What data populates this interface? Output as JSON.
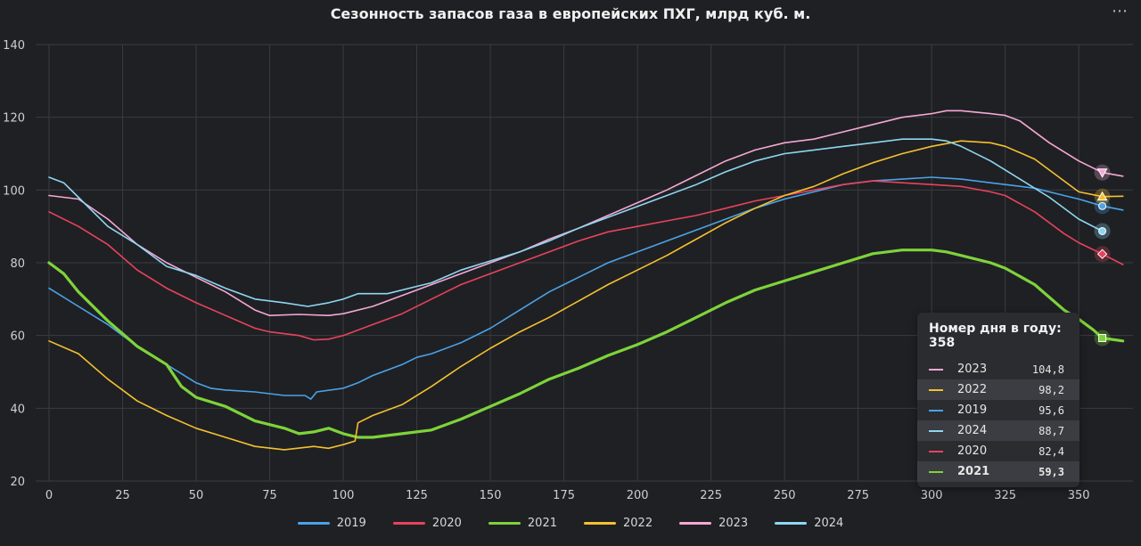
{
  "header": {
    "title": "Сезонность запасов газа в европейских ПХГ, млрд куб. м.",
    "menu_icon": "more-dots-icon"
  },
  "chart_data": {
    "type": "line",
    "title": "Сезонность запасов газа в европейских ПХГ, млрд куб. м.",
    "xlabel": "",
    "ylabel": "",
    "xlim": [
      0,
      366
    ],
    "ylim": [
      20,
      140
    ],
    "xticks": [
      0,
      25,
      50,
      75,
      100,
      125,
      150,
      175,
      200,
      225,
      250,
      275,
      300,
      325,
      350
    ],
    "yticks": [
      20,
      40,
      60,
      80,
      100,
      120,
      140
    ],
    "grid": true,
    "legend_position": "bottom",
    "series": [
      {
        "name": "2019",
        "color": "#4aa3e8",
        "width": 1.6,
        "marker": "circle",
        "points": [
          [
            0,
            73
          ],
          [
            10,
            68
          ],
          [
            20,
            63
          ],
          [
            30,
            57
          ],
          [
            40,
            52
          ],
          [
            50,
            47
          ],
          [
            55,
            45.5
          ],
          [
            60,
            45
          ],
          [
            70,
            44.5
          ],
          [
            80,
            43.5
          ],
          [
            87,
            43.5
          ],
          [
            89,
            42.5
          ],
          [
            91,
            44.5
          ],
          [
            100,
            45.5
          ],
          [
            105,
            47
          ],
          [
            110,
            49
          ],
          [
            120,
            52
          ],
          [
            125,
            54
          ],
          [
            130,
            55
          ],
          [
            140,
            58
          ],
          [
            150,
            62
          ],
          [
            160,
            67
          ],
          [
            170,
            72
          ],
          [
            180,
            76
          ],
          [
            190,
            80
          ],
          [
            200,
            83
          ],
          [
            210,
            86
          ],
          [
            220,
            89
          ],
          [
            230,
            92
          ],
          [
            240,
            95
          ],
          [
            250,
            97.5
          ],
          [
            260,
            99.5
          ],
          [
            270,
            101.5
          ],
          [
            280,
            102.5
          ],
          [
            290,
            103
          ],
          [
            300,
            103.5
          ],
          [
            310,
            103
          ],
          [
            320,
            102
          ],
          [
            325,
            101.5
          ],
          [
            335,
            100.5
          ],
          [
            345,
            98.5
          ],
          [
            350,
            97.5
          ],
          [
            358,
            95.6
          ],
          [
            365,
            94.5
          ]
        ]
      },
      {
        "name": "2020",
        "color": "#e8435c",
        "width": 1.6,
        "marker": "diamond",
        "points": [
          [
            0,
            94
          ],
          [
            10,
            90
          ],
          [
            20,
            85
          ],
          [
            30,
            78
          ],
          [
            40,
            73
          ],
          [
            50,
            69
          ],
          [
            60,
            65.5
          ],
          [
            70,
            62
          ],
          [
            75,
            61
          ],
          [
            85,
            60
          ],
          [
            90,
            58.8
          ],
          [
            95,
            59
          ],
          [
            100,
            60
          ],
          [
            110,
            63
          ],
          [
            120,
            66
          ],
          [
            130,
            70
          ],
          [
            140,
            74
          ],
          [
            150,
            77
          ],
          [
            160,
            80
          ],
          [
            170,
            83
          ],
          [
            180,
            86
          ],
          [
            190,
            88.5
          ],
          [
            200,
            90
          ],
          [
            210,
            91.5
          ],
          [
            220,
            93
          ],
          [
            230,
            95
          ],
          [
            240,
            97
          ],
          [
            250,
            98.5
          ],
          [
            260,
            100
          ],
          [
            270,
            101.5
          ],
          [
            280,
            102.5
          ],
          [
            290,
            102
          ],
          [
            300,
            101.5
          ],
          [
            310,
            101
          ],
          [
            320,
            99.5
          ],
          [
            325,
            98.5
          ],
          [
            335,
            94
          ],
          [
            345,
            88
          ],
          [
            350,
            85.5
          ],
          [
            358,
            82.4
          ],
          [
            365,
            79.5
          ]
        ]
      },
      {
        "name": "2021",
        "color": "#7ed33a",
        "width": 3.2,
        "marker": "square",
        "points": [
          [
            0,
            80
          ],
          [
            5,
            77
          ],
          [
            10,
            72
          ],
          [
            20,
            64
          ],
          [
            30,
            57
          ],
          [
            40,
            52
          ],
          [
            45,
            46
          ],
          [
            50,
            43
          ],
          [
            60,
            40.5
          ],
          [
            70,
            36.5
          ],
          [
            80,
            34.5
          ],
          [
            85,
            33
          ],
          [
            90,
            33.5
          ],
          [
            95,
            34.5
          ],
          [
            100,
            33
          ],
          [
            105,
            32
          ],
          [
            110,
            32
          ],
          [
            120,
            33
          ],
          [
            130,
            34
          ],
          [
            140,
            37
          ],
          [
            150,
            40.5
          ],
          [
            160,
            44
          ],
          [
            170,
            48
          ],
          [
            180,
            51
          ],
          [
            190,
            54.5
          ],
          [
            200,
            57.5
          ],
          [
            210,
            61
          ],
          [
            220,
            65
          ],
          [
            230,
            69
          ],
          [
            240,
            72.5
          ],
          [
            250,
            75
          ],
          [
            260,
            77.5
          ],
          [
            270,
            80
          ],
          [
            280,
            82.5
          ],
          [
            290,
            83.5
          ],
          [
            300,
            83.5
          ],
          [
            305,
            83
          ],
          [
            310,
            82
          ],
          [
            320,
            80
          ],
          [
            325,
            78.5
          ],
          [
            335,
            74
          ],
          [
            345,
            67
          ],
          [
            350,
            64.5
          ],
          [
            355,
            61.5
          ],
          [
            358,
            59.3
          ],
          [
            365,
            58.5
          ]
        ]
      },
      {
        "name": "2022",
        "color": "#f5c12e",
        "width": 1.6,
        "marker": "triangle",
        "points": [
          [
            0,
            58.5
          ],
          [
            10,
            55
          ],
          [
            20,
            48
          ],
          [
            30,
            42
          ],
          [
            40,
            38
          ],
          [
            50,
            34.5
          ],
          [
            60,
            32
          ],
          [
            70,
            29.5
          ],
          [
            80,
            28.6
          ],
          [
            90,
            29.5
          ],
          [
            95,
            29
          ],
          [
            100,
            30
          ],
          [
            104,
            31
          ],
          [
            105,
            36
          ],
          [
            110,
            38
          ],
          [
            120,
            41
          ],
          [
            130,
            46
          ],
          [
            140,
            51.5
          ],
          [
            150,
            56.5
          ],
          [
            160,
            61
          ],
          [
            170,
            65
          ],
          [
            180,
            69.5
          ],
          [
            190,
            74
          ],
          [
            200,
            78
          ],
          [
            210,
            82
          ],
          [
            220,
            86.5
          ],
          [
            230,
            91
          ],
          [
            240,
            95
          ],
          [
            250,
            98.5
          ],
          [
            260,
            101
          ],
          [
            270,
            104.5
          ],
          [
            280,
            107.5
          ],
          [
            290,
            110
          ],
          [
            300,
            112
          ],
          [
            310,
            113.5
          ],
          [
            320,
            113
          ],
          [
            325,
            112
          ],
          [
            335,
            108.5
          ],
          [
            345,
            102.5
          ],
          [
            350,
            99.5
          ],
          [
            358,
            98.2
          ],
          [
            365,
            98.3
          ]
        ]
      },
      {
        "name": "2023",
        "color": "#f5a8d4",
        "width": 1.6,
        "marker": "triangle-down",
        "points": [
          [
            0,
            98.5
          ],
          [
            10,
            97.5
          ],
          [
            20,
            92
          ],
          [
            30,
            85
          ],
          [
            40,
            80
          ],
          [
            50,
            76
          ],
          [
            60,
            72
          ],
          [
            70,
            67
          ],
          [
            75,
            65.5
          ],
          [
            85,
            65.8
          ],
          [
            95,
            65.5
          ],
          [
            100,
            66
          ],
          [
            110,
            68
          ],
          [
            120,
            71
          ],
          [
            130,
            74
          ],
          [
            140,
            77
          ],
          [
            150,
            80
          ],
          [
            160,
            83
          ],
          [
            170,
            86.5
          ],
          [
            180,
            89.5
          ],
          [
            190,
            93
          ],
          [
            200,
            96.5
          ],
          [
            210,
            100
          ],
          [
            220,
            104
          ],
          [
            230,
            108
          ],
          [
            240,
            111
          ],
          [
            250,
            113
          ],
          [
            260,
            114
          ],
          [
            270,
            116
          ],
          [
            280,
            118
          ],
          [
            290,
            120
          ],
          [
            300,
            121
          ],
          [
            305,
            121.8
          ],
          [
            310,
            121.8
          ],
          [
            320,
            121
          ],
          [
            325,
            120.5
          ],
          [
            330,
            119
          ],
          [
            340,
            113
          ],
          [
            350,
            108
          ],
          [
            358,
            104.8
          ],
          [
            365,
            103.8
          ]
        ]
      },
      {
        "name": "2024",
        "color": "#8dd7f2",
        "width": 1.6,
        "marker": "circle",
        "points": [
          [
            0,
            103.5
          ],
          [
            5,
            102
          ],
          [
            10,
            98
          ],
          [
            20,
            90
          ],
          [
            30,
            85
          ],
          [
            40,
            79
          ],
          [
            50,
            76.5
          ],
          [
            60,
            73
          ],
          [
            70,
            70
          ],
          [
            80,
            69
          ],
          [
            88,
            68
          ],
          [
            95,
            69
          ],
          [
            100,
            70
          ],
          [
            105,
            71.5
          ],
          [
            110,
            71.5
          ],
          [
            115,
            71.5
          ],
          [
            125,
            73.5
          ],
          [
            130,
            74.5
          ],
          [
            140,
            78
          ],
          [
            150,
            80.5
          ],
          [
            160,
            83
          ],
          [
            170,
            86
          ],
          [
            180,
            89.5
          ],
          [
            190,
            92.5
          ],
          [
            200,
            95.5
          ],
          [
            210,
            98.5
          ],
          [
            220,
            101.5
          ],
          [
            230,
            105
          ],
          [
            240,
            108
          ],
          [
            250,
            110
          ],
          [
            260,
            111
          ],
          [
            270,
            112
          ],
          [
            280,
            113
          ],
          [
            290,
            114
          ],
          [
            300,
            114
          ],
          [
            305,
            113.5
          ],
          [
            310,
            112
          ],
          [
            320,
            108
          ],
          [
            330,
            103
          ],
          [
            340,
            98
          ],
          [
            350,
            92
          ],
          [
            358,
            88.7
          ]
        ]
      }
    ],
    "tooltip": {
      "day_label": "Номер дня в году: 358",
      "day": 358,
      "rows": [
        {
          "name": "2023",
          "value": "104,8"
        },
        {
          "name": "2022",
          "value": "98,2"
        },
        {
          "name": "2019",
          "value": "95,6"
        },
        {
          "name": "2024",
          "value": "88,7"
        },
        {
          "name": "2020",
          "value": "82,4"
        },
        {
          "name": "2021",
          "value": "59,3"
        }
      ]
    }
  }
}
